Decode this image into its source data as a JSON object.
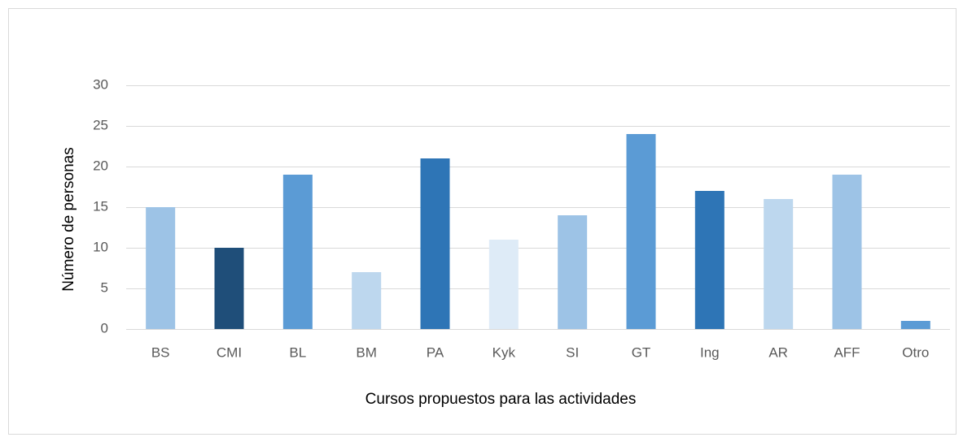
{
  "chart_data": {
    "type": "bar",
    "x_label": "Cursos propuestos para las actividades",
    "y_label": "Número de personas",
    "categories": [
      "BS",
      "CMI",
      "BL",
      "BM",
      "PA",
      "Kyk",
      "SI",
      "GT",
      "Ing",
      "AR",
      "AFF",
      "Otro"
    ],
    "values": [
      15,
      10,
      19,
      7,
      21,
      11,
      14,
      24,
      17,
      16,
      19,
      1
    ],
    "colors": [
      "#9dc3e6",
      "#1f4e79",
      "#5b9bd5",
      "#bdd7ee",
      "#2e75b6",
      "#deebf7",
      "#9dc3e6",
      "#5b9bd5",
      "#2e75b6",
      "#bdd7ee",
      "#9dc3e6",
      "#5b9bd5"
    ],
    "ylim": [
      0,
      30
    ],
    "yticks": [
      0,
      5,
      10,
      15,
      20,
      25,
      30
    ],
    "grid": true
  }
}
